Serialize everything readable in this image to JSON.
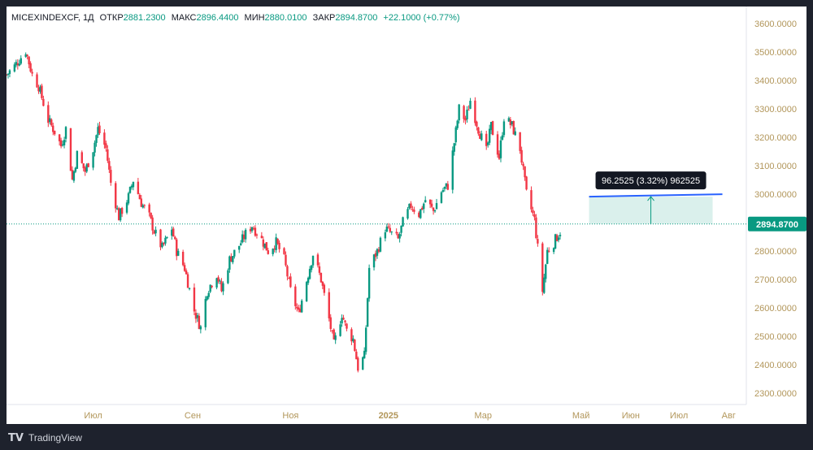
{
  "legend": {
    "symbol": "MICEXINDEXCF, 1Д",
    "open_label": "ОТКР",
    "open": "2881.2300",
    "high_label": "МАКС",
    "high": "2896.4400",
    "low_label": "МИН",
    "low": "2880.0100",
    "close_label": "ЗАКР",
    "close": "2894.8700",
    "change": "+22.1000 (+0.77%)"
  },
  "measure": {
    "label": "96.2525 (3.32%) 962525",
    "from_price": 2894.87,
    "to_price": 2991.12,
    "color": "#089981",
    "line_color": "#2962ff"
  },
  "price_badge": "2894.8700",
  "footer": {
    "brand": "TradingView"
  },
  "colors": {
    "up": "#089981",
    "down": "#f23645",
    "axis_text": "#b2965a"
  },
  "chart_data": {
    "type": "candlestick",
    "title": "MICEXINDEXCF, 1Д",
    "ylim": [
      2260,
      3660
    ],
    "y_ticks": [
      "3600.0000",
      "3500.0000",
      "3400.0000",
      "3300.0000",
      "3200.0000",
      "3100.0000",
      "3000.0000",
      "2900.0000",
      "2800.0000",
      "2700.0000",
      "2600.0000",
      "2500.0000",
      "2400.0000",
      "2300.0000"
    ],
    "x_ticks": [
      {
        "label": "Июл",
        "date": "2024-07-01"
      },
      {
        "label": "Сен",
        "date": "2024-09-01"
      },
      {
        "label": "Ноя",
        "date": "2024-11-01"
      },
      {
        "label": "2025",
        "date": "2025-01-01",
        "bold": true
      },
      {
        "label": "Мар",
        "date": "2025-03-01"
      },
      {
        "label": "Май",
        "date": "2025-05-01"
      },
      {
        "label": "Июн",
        "date": "2025-06-01"
      },
      {
        "label": "Июл",
        "date": "2025-07-01"
      },
      {
        "label": "Авг",
        "date": "2025-08-01"
      }
    ],
    "x_range": [
      "2024-05-08",
      "2025-08-12"
    ],
    "last_close": 2894.87,
    "closes": [
      {
        "date": "2024-05-08",
        "close": 3420
      },
      {
        "date": "2024-05-13",
        "close": 3450
      },
      {
        "date": "2024-05-20",
        "close": 3505
      },
      {
        "date": "2024-05-24",
        "close": 3420
      },
      {
        "date": "2024-05-28",
        "close": 3380
      },
      {
        "date": "2024-06-03",
        "close": 3260
      },
      {
        "date": "2024-06-07",
        "close": 3220
      },
      {
        "date": "2024-06-11",
        "close": 3170
      },
      {
        "date": "2024-06-14",
        "close": 3230
      },
      {
        "date": "2024-06-18",
        "close": 3050
      },
      {
        "date": "2024-06-21",
        "close": 3140
      },
      {
        "date": "2024-06-26",
        "close": 3080
      },
      {
        "date": "2024-07-01",
        "close": 3160
      },
      {
        "date": "2024-07-04",
        "close": 3230
      },
      {
        "date": "2024-07-09",
        "close": 3160
      },
      {
        "date": "2024-07-12",
        "close": 3040
      },
      {
        "date": "2024-07-17",
        "close": 2920
      },
      {
        "date": "2024-07-23",
        "close": 2990
      },
      {
        "date": "2024-07-26",
        "close": 3050
      },
      {
        "date": "2024-07-31",
        "close": 2970
      },
      {
        "date": "2024-08-05",
        "close": 2920
      },
      {
        "date": "2024-08-08",
        "close": 2870
      },
      {
        "date": "2024-08-13",
        "close": 2810
      },
      {
        "date": "2024-08-19",
        "close": 2880
      },
      {
        "date": "2024-08-22",
        "close": 2800
      },
      {
        "date": "2024-08-27",
        "close": 2740
      },
      {
        "date": "2024-09-02",
        "close": 2590
      },
      {
        "date": "2024-09-06",
        "close": 2530
      },
      {
        "date": "2024-09-10",
        "close": 2660
      },
      {
        "date": "2024-09-16",
        "close": 2720
      },
      {
        "date": "2024-09-19",
        "close": 2660
      },
      {
        "date": "2024-09-24",
        "close": 2770
      },
      {
        "date": "2024-09-30",
        "close": 2820
      },
      {
        "date": "2024-10-04",
        "close": 2860
      },
      {
        "date": "2024-10-08",
        "close": 2890
      },
      {
        "date": "2024-10-14",
        "close": 2840
      },
      {
        "date": "2024-10-18",
        "close": 2800
      },
      {
        "date": "2024-10-23",
        "close": 2830
      },
      {
        "date": "2024-10-28",
        "close": 2770
      },
      {
        "date": "2024-11-01",
        "close": 2660
      },
      {
        "date": "2024-11-06",
        "close": 2580
      },
      {
        "date": "2024-11-12",
        "close": 2720
      },
      {
        "date": "2024-11-15",
        "close": 2790
      },
      {
        "date": "2024-11-20",
        "close": 2700
      },
      {
        "date": "2024-11-25",
        "close": 2560
      },
      {
        "date": "2024-11-28",
        "close": 2470
      },
      {
        "date": "2024-12-03",
        "close": 2580
      },
      {
        "date": "2024-12-06",
        "close": 2520
      },
      {
        "date": "2024-12-10",
        "close": 2490
      },
      {
        "date": "2024-12-13",
        "close": 2390
      },
      {
        "date": "2024-12-17",
        "close": 2430
      },
      {
        "date": "2024-12-20",
        "close": 2740
      },
      {
        "date": "2024-12-25",
        "close": 2800
      },
      {
        "date": "2024-12-30",
        "close": 2880
      },
      {
        "date": "2025-01-07",
        "close": 2840
      },
      {
        "date": "2025-01-10",
        "close": 2900
      },
      {
        "date": "2025-01-15",
        "close": 2960
      },
      {
        "date": "2025-01-20",
        "close": 2930
      },
      {
        "date": "2025-01-24",
        "close": 2980
      },
      {
        "date": "2025-01-29",
        "close": 2940
      },
      {
        "date": "2025-02-03",
        "close": 3010
      },
      {
        "date": "2025-02-07",
        "close": 3030
      },
      {
        "date": "2025-02-12",
        "close": 3220
      },
      {
        "date": "2025-02-14",
        "close": 3300
      },
      {
        "date": "2025-02-18",
        "close": 3260
      },
      {
        "date": "2025-02-21",
        "close": 3330
      },
      {
        "date": "2025-02-26",
        "close": 3230
      },
      {
        "date": "2025-03-03",
        "close": 3150
      },
      {
        "date": "2025-03-06",
        "close": 3240
      },
      {
        "date": "2025-03-11",
        "close": 3130
      },
      {
        "date": "2025-03-14",
        "close": 3270
      },
      {
        "date": "2025-03-19",
        "close": 3240
      },
      {
        "date": "2025-03-24",
        "close": 3160
      },
      {
        "date": "2025-03-28",
        "close": 3000
      },
      {
        "date": "2025-04-02",
        "close": 2910
      },
      {
        "date": "2025-04-07",
        "close": 2660
      },
      {
        "date": "2025-04-10",
        "close": 2800
      },
      {
        "date": "2025-04-14",
        "close": 2830
      },
      {
        "date": "2025-04-17",
        "close": 2860
      },
      {
        "date": "2025-04-21",
        "close": 2894.87
      }
    ]
  }
}
